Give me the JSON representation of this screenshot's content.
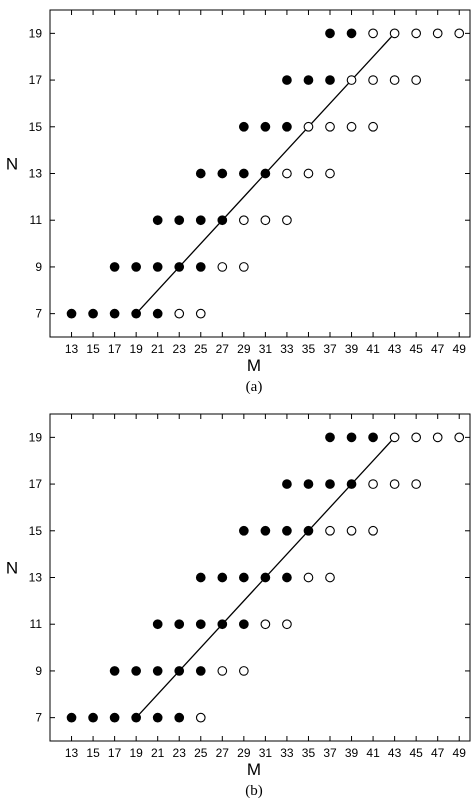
{
  "chart_data": [
    {
      "type": "scatter",
      "caption": "(a)",
      "xlabel": "M",
      "ylabel": "N",
      "xlim": [
        11,
        50
      ],
      "ylim": [
        6,
        20
      ],
      "xticks": [
        13,
        15,
        17,
        19,
        21,
        23,
        25,
        27,
        29,
        31,
        33,
        35,
        37,
        39,
        41,
        43,
        45,
        47,
        49
      ],
      "yticks": [
        7,
        9,
        11,
        13,
        15,
        17,
        19
      ],
      "grid": false,
      "series": [
        {
          "marker": "filled",
          "points": [
            [
              13,
              7
            ],
            [
              15,
              7
            ],
            [
              17,
              7
            ],
            [
              19,
              7
            ],
            [
              21,
              7
            ],
            [
              17,
              9
            ],
            [
              19,
              9
            ],
            [
              21,
              9
            ],
            [
              23,
              9
            ],
            [
              25,
              9
            ],
            [
              21,
              11
            ],
            [
              23,
              11
            ],
            [
              25,
              11
            ],
            [
              27,
              11
            ],
            [
              25,
              13
            ],
            [
              27,
              13
            ],
            [
              29,
              13
            ],
            [
              31,
              13
            ],
            [
              29,
              15
            ],
            [
              31,
              15
            ],
            [
              33,
              15
            ],
            [
              33,
              17
            ],
            [
              35,
              17
            ],
            [
              37,
              17
            ],
            [
              37,
              19
            ],
            [
              39,
              19
            ]
          ]
        },
        {
          "marker": "open",
          "points": [
            [
              23,
              7
            ],
            [
              25,
              7
            ],
            [
              27,
              9
            ],
            [
              29,
              9
            ],
            [
              29,
              11
            ],
            [
              31,
              11
            ],
            [
              33,
              11
            ],
            [
              33,
              13
            ],
            [
              35,
              13
            ],
            [
              37,
              13
            ],
            [
              35,
              15
            ],
            [
              37,
              15
            ],
            [
              39,
              15
            ],
            [
              41,
              15
            ],
            [
              39,
              17
            ],
            [
              41,
              17
            ],
            [
              43,
              17
            ],
            [
              45,
              17
            ],
            [
              41,
              19
            ],
            [
              43,
              19
            ],
            [
              45,
              19
            ],
            [
              47,
              19
            ],
            [
              49,
              19
            ]
          ]
        }
      ],
      "line": [
        [
          19,
          7
        ],
        [
          43,
          19
        ]
      ]
    },
    {
      "type": "scatter",
      "caption": "(b)",
      "xlabel": "M",
      "ylabel": "N",
      "xlim": [
        11,
        50
      ],
      "ylim": [
        6,
        20
      ],
      "xticks": [
        13,
        15,
        17,
        19,
        21,
        23,
        25,
        27,
        29,
        31,
        33,
        35,
        37,
        39,
        41,
        43,
        45,
        47,
        49
      ],
      "yticks": [
        7,
        9,
        11,
        13,
        15,
        17,
        19
      ],
      "grid": false,
      "series": [
        {
          "marker": "filled",
          "points": [
            [
              13,
              7
            ],
            [
              15,
              7
            ],
            [
              17,
              7
            ],
            [
              19,
              7
            ],
            [
              21,
              7
            ],
            [
              23,
              7
            ],
            [
              17,
              9
            ],
            [
              19,
              9
            ],
            [
              21,
              9
            ],
            [
              23,
              9
            ],
            [
              25,
              9
            ],
            [
              21,
              11
            ],
            [
              23,
              11
            ],
            [
              25,
              11
            ],
            [
              27,
              11
            ],
            [
              29,
              11
            ],
            [
              25,
              13
            ],
            [
              27,
              13
            ],
            [
              29,
              13
            ],
            [
              31,
              13
            ],
            [
              33,
              13
            ],
            [
              29,
              15
            ],
            [
              31,
              15
            ],
            [
              33,
              15
            ],
            [
              35,
              15
            ],
            [
              33,
              17
            ],
            [
              35,
              17
            ],
            [
              37,
              17
            ],
            [
              39,
              17
            ],
            [
              37,
              19
            ],
            [
              39,
              19
            ],
            [
              41,
              19
            ]
          ]
        },
        {
          "marker": "open",
          "points": [
            [
              25,
              7
            ],
            [
              27,
              9
            ],
            [
              29,
              9
            ],
            [
              31,
              11
            ],
            [
              33,
              11
            ],
            [
              35,
              13
            ],
            [
              37,
              13
            ],
            [
              37,
              15
            ],
            [
              39,
              15
            ],
            [
              41,
              15
            ],
            [
              41,
              17
            ],
            [
              43,
              17
            ],
            [
              45,
              17
            ],
            [
              43,
              19
            ],
            [
              45,
              19
            ],
            [
              47,
              19
            ],
            [
              49,
              19
            ]
          ]
        }
      ],
      "line": [
        [
          19,
          7
        ],
        [
          43,
          19
        ]
      ]
    }
  ]
}
